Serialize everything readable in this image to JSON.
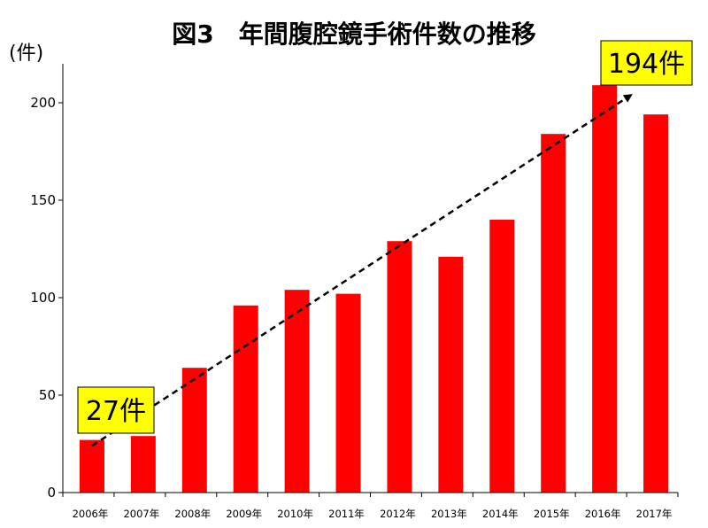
{
  "chart_data": {
    "type": "bar",
    "title": "図3　年間腹腔鏡手術件数の推移",
    "ylabel": "(件)",
    "xlabel": "",
    "categories": [
      "2006年",
      "2007年",
      "2008年",
      "2009年",
      "2010年",
      "2011年",
      "2012年",
      "2013年",
      "2014年",
      "2015年",
      "2016年",
      "2017年"
    ],
    "values": [
      27,
      29,
      64,
      96,
      104,
      102,
      129,
      121,
      140,
      184,
      209,
      194
    ],
    "ylim": [
      0,
      220
    ],
    "yticks": [
      "0",
      "50",
      "100",
      "150",
      "200"
    ],
    "grid": false,
    "legend": "none",
    "bar_color": "#ff0000",
    "trend": {
      "from_category": "2006年",
      "to_category": "2016年",
      "style": "dashed-arrow",
      "color": "#000000"
    },
    "annotations": [
      {
        "label": "27件",
        "category": "2006年",
        "value": 27,
        "background": "#ffff00"
      },
      {
        "label": "194件",
        "category": "2017年",
        "value": 194,
        "background": "#ffff00"
      }
    ]
  }
}
